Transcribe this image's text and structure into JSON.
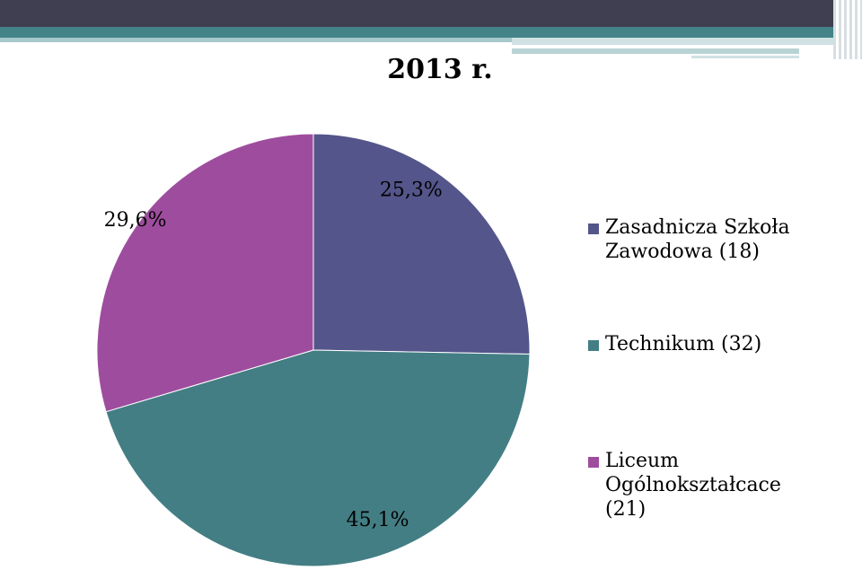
{
  "chart_data": {
    "type": "pie",
    "title": "2013 r.",
    "slices": [
      {
        "legend": "Zasadnicza Szkoła Zawodowa (18)",
        "count": 18,
        "percent": 25.3,
        "label": "25,3%",
        "color": "#54558a"
      },
      {
        "legend": "Technikum (32)",
        "count": 32,
        "percent": 45.1,
        "label": "45,1%",
        "color": "#437e84"
      },
      {
        "legend": "Liceum Ogólnokształcace (21)",
        "count": 21,
        "percent": 29.6,
        "label": "29,6%",
        "color": "#9e4d9e"
      }
    ],
    "legend_position": "right",
    "start_angle": "top, clockwise"
  }
}
